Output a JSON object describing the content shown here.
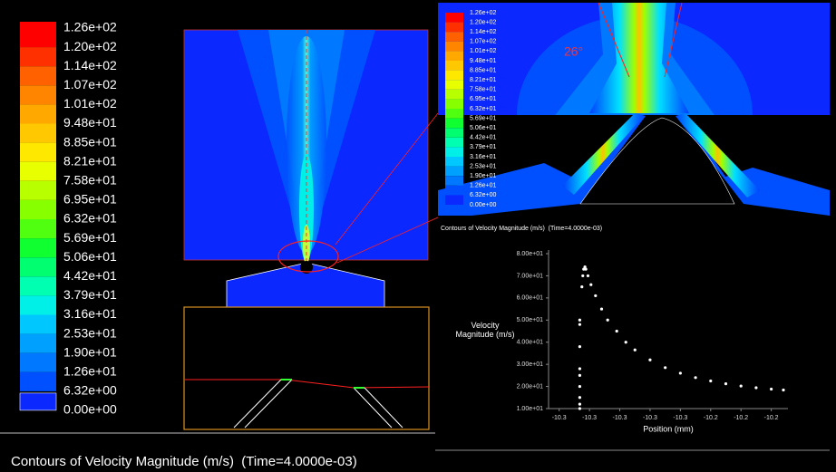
{
  "colorbar": {
    "labels": [
      "1.26e+02",
      "1.20e+02",
      "1.14e+02",
      "1.07e+02",
      "1.01e+02",
      "9.48e+01",
      "8.85e+01",
      "8.21e+01",
      "7.58e+01",
      "6.95e+01",
      "6.32e+01",
      "5.69e+01",
      "5.06e+01",
      "4.42e+01",
      "3.79e+01",
      "3.16e+01",
      "2.53e+01",
      "1.90e+01",
      "1.26e+01",
      "6.32e+00",
      "0.00e+00"
    ],
    "colors": [
      "#ff0000",
      "#ff3000",
      "#ff6000",
      "#ff8400",
      "#ffa800",
      "#ffc800",
      "#ffe800",
      "#e8ff00",
      "#b8ff00",
      "#88ff00",
      "#50ff10",
      "#10ff30",
      "#00ff70",
      "#00ffb0",
      "#00f0e8",
      "#00c8ff",
      "#00a0ff",
      "#0078ff",
      "#0050ff",
      "#0a28ff"
    ]
  },
  "inset": {
    "angle_label": "26°"
  },
  "caption": "Contours of Velocity Magnitude (m/s)  (Time=4.0000e-03)",
  "chart_data": {
    "type": "scatter",
    "title": "Contours of Velocity Magnitude (m/s)  (Time=4.0000e-03)",
    "x_label": "Position (mm)",
    "y_label": "Velocity Magnitude (m/s)",
    "color": "#ffffff",
    "xlim": [
      -10.3035,
      -10.2245
    ],
    "xticks": [
      {
        "value": -10.3,
        "label": "-10.3"
      },
      {
        "value": -10.29,
        "label": "-10.3"
      },
      {
        "value": -10.28,
        "label": "-10.3"
      },
      {
        "value": -10.27,
        "label": "-10.3"
      },
      {
        "value": -10.26,
        "label": "-10.3"
      },
      {
        "value": -10.25,
        "label": "-10.2"
      },
      {
        "value": -10.24,
        "label": "-10.2"
      },
      {
        "value": -10.23,
        "label": "-10.2"
      }
    ],
    "ylim": [
      10,
      80
    ],
    "yticks": [
      {
        "value": 10,
        "label": "1.00e+01"
      },
      {
        "value": 20,
        "label": "2.00e+01"
      },
      {
        "value": 30,
        "label": "3.00e+01"
      },
      {
        "value": 40,
        "label": "4.00e+01"
      },
      {
        "value": 50,
        "label": "5.00e+01"
      },
      {
        "value": 60,
        "label": "6.00e+01"
      },
      {
        "value": 70,
        "label": "7.00e+01"
      },
      {
        "value": 80,
        "label": "8.00e+01"
      }
    ],
    "x": [
      -10.2932,
      -10.2932,
      -10.2932,
      -10.2932,
      -10.2932,
      -10.2932,
      -10.2932,
      -10.2932,
      -10.2932,
      -10.2925,
      -10.2922,
      -10.2919,
      -10.2915,
      -10.2912,
      -10.2905,
      -10.2895,
      -10.288,
      -10.286,
      -10.284,
      -10.281,
      -10.278,
      -10.275,
      -10.27,
      -10.265,
      -10.26,
      -10.255,
      -10.25,
      -10.245,
      -10.24,
      -10.235,
      -10.23,
      -10.226
    ],
    "values": [
      10,
      12,
      15,
      20,
      25,
      28,
      38,
      48,
      50,
      65,
      70,
      73,
      74,
      73,
      70,
      66,
      61,
      55,
      50,
      45,
      40,
      36.5,
      32,
      28.5,
      26,
      24,
      22.5,
      21.2,
      20.2,
      19.4,
      18.8,
      18.4
    ]
  }
}
